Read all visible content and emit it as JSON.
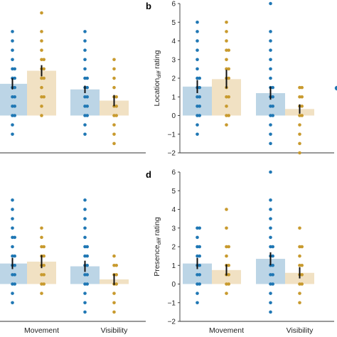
{
  "chart_data": [
    {
      "panel": "a",
      "type": "bar",
      "label": "",
      "ylabel_main": "",
      "ylabel_sub": "",
      "ylim": [
        -2,
        6
      ],
      "yticks": [],
      "categories": [
        "",
        ""
      ],
      "series": [
        {
          "color": "#1f77b4",
          "values": [
            1.7,
            1.4
          ],
          "errors": [
            0.3,
            0.2
          ],
          "points": [
            [
              4.5,
              4,
              3.5,
              3,
              2.5,
              2.5,
              2,
              2,
              1.5,
              1.5,
              1,
              1,
              0.5,
              0.5,
              0,
              0,
              -0.5,
              -1
            ],
            [
              4.5,
              4,
              3.5,
              3,
              2.5,
              2,
              2,
              1.5,
              1.5,
              1,
              1,
              0.5,
              0.5,
              0,
              0,
              -0.5,
              -1
            ]
          ]
        },
        {
          "color": "#c89a2e",
          "values": [
            2.4,
            0.8
          ],
          "errors": [
            0.3,
            0.3
          ],
          "points": [
            [
              5.5,
              4.5,
              4,
              3.5,
              3,
              3,
              2.5,
              2.5,
              2,
              2,
              1.5,
              1,
              1,
              0.5,
              0
            ],
            [
              3,
              2.5,
              2,
              1.5,
              1,
              1,
              0.5,
              0.5,
              0,
              0,
              -0.5,
              -1,
              -1.5
            ]
          ]
        }
      ]
    },
    {
      "panel": "b",
      "type": "bar",
      "label": "b",
      "ylabel_main": "Location",
      "ylabel_sub": "diff",
      "ylabel_suffix": " rating",
      "ylim": [
        -2,
        6
      ],
      "yticks": [
        -2,
        -1,
        0,
        1,
        2,
        3,
        4,
        5,
        6
      ],
      "categories": [
        "",
        ""
      ],
      "series": [
        {
          "color": "#1f77b4",
          "values": [
            1.55,
            1.2
          ],
          "errors": [
            0.35,
            0.35
          ],
          "points": [
            [
              5,
              4.5,
              4,
              3.5,
              3,
              2.5,
              2,
              2,
              1.5,
              1.5,
              1,
              1,
              0.5,
              0.5,
              0,
              0,
              -0.5,
              -1
            ],
            [
              6,
              4.5,
              4,
              3.5,
              3,
              2.5,
              2,
              1.5,
              1.5,
              1,
              1,
              0.5,
              0.5,
              0,
              0,
              -0.5,
              -1,
              -1.5
            ]
          ]
        },
        {
          "color": "#c89a2e",
          "values": [
            1.95,
            0.35
          ],
          "errors": [
            0.5,
            0.25
          ],
          "points": [
            [
              5,
              4.5,
              4,
              3.5,
              3.5,
              3,
              2.5,
              2.5,
              2,
              2,
              1.5,
              1,
              1,
              0.5,
              0,
              0,
              -0.5
            ],
            [
              1.5,
              1.5,
              1,
              1,
              0.5,
              0.5,
              0,
              0,
              -0.5,
              -1,
              -1.5,
              -2
            ]
          ]
        }
      ]
    },
    {
      "panel": "c",
      "type": "bar",
      "label": "",
      "ylabel_main": "",
      "ylabel_sub": "",
      "ylim": [
        -2,
        6
      ],
      "yticks": [],
      "categories": [
        "Movement",
        "Visibility"
      ],
      "series": [
        {
          "color": "#1f77b4",
          "values": [
            1.1,
            0.95
          ],
          "errors": [
            0.3,
            0.3
          ],
          "points": [
            [
              4.5,
              4,
              3.5,
              3,
              2.5,
              2.5,
              2,
              1.5,
              1.5,
              1,
              1,
              0.5,
              0.5,
              0,
              0,
              -0.5,
              -1
            ],
            [
              4.5,
              4,
              3.5,
              3,
              2.5,
              2,
              2,
              1.5,
              1.5,
              1,
              1,
              0.5,
              0.5,
              0,
              0,
              -0.5,
              -1,
              -1.5
            ]
          ]
        },
        {
          "color": "#c89a2e",
          "values": [
            1.2,
            0.25
          ],
          "errors": [
            0.35,
            0.3
          ],
          "points": [
            [
              3,
              2.5,
              2,
              2,
              1.5,
              1.5,
              1,
              1,
              0.5,
              0.5,
              0,
              0,
              -0.5
            ],
            [
              1.5,
              1,
              1,
              0.5,
              0.5,
              0,
              0,
              -0.5,
              -1,
              -1.5
            ]
          ]
        }
      ]
    },
    {
      "panel": "d",
      "type": "bar",
      "label": "d",
      "ylabel_main": "Presence",
      "ylabel_sub": "diff",
      "ylabel_suffix": " rating",
      "ylim": [
        -2,
        6
      ],
      "yticks": [
        -2,
        -1,
        0,
        1,
        2,
        3,
        4,
        5,
        6
      ],
      "categories": [
        "Movement",
        "Visibility"
      ],
      "series": [
        {
          "color": "#1f77b4",
          "values": [
            1.1,
            1.35
          ],
          "errors": [
            0.3,
            0.35
          ],
          "points": [
            [
              3,
              3,
              2.5,
              2,
              2,
              1.5,
              1.5,
              1,
              1,
              0.5,
              0.5,
              0,
              0,
              -0.5,
              -1
            ],
            [
              6,
              4.5,
              4,
              3.5,
              3,
              2.5,
              2,
              2,
              1.5,
              1.5,
              1,
              1,
              0.5,
              0.5,
              0,
              0,
              -0.5,
              -1,
              -1.5
            ]
          ]
        },
        {
          "color": "#c89a2e",
          "values": [
            0.75,
            0.6
          ],
          "errors": [
            0.3,
            0.3
          ],
          "points": [
            [
              4,
              3,
              2,
              2,
              1.5,
              1,
              1,
              0.5,
              0.5,
              0,
              0,
              -0.5
            ],
            [
              3,
              2,
              2,
              1.5,
              1,
              1,
              0.5,
              0.5,
              0,
              0,
              -0.5,
              -1
            ]
          ]
        }
      ]
    }
  ]
}
